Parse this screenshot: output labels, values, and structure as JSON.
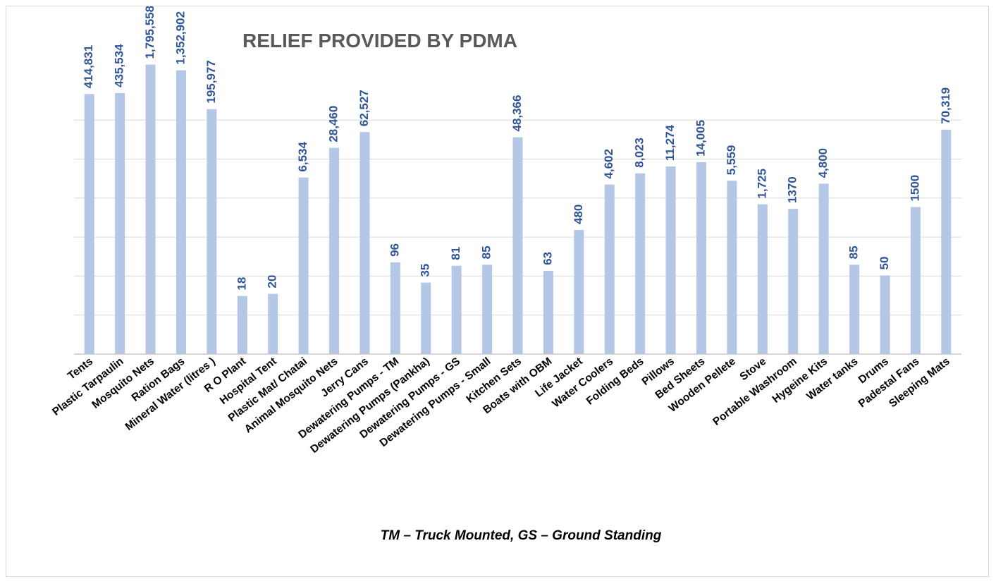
{
  "chart_data": {
    "type": "bar",
    "title": "RELIEF PROVIDED BY PDMA",
    "footnote": "TM – Truck Mounted, GS – Ground Standing",
    "scale": "log",
    "value_axis_labels": false,
    "grid": "horizontal",
    "legend": "none",
    "bar_color": "#b4c7e7",
    "label_color": "#2f5597",
    "categories": [
      "Tents",
      "Plastic Tarpaulin",
      "Mosquito Nets",
      "Ration Bags",
      "Mineral Water (litres )",
      "R O Plant",
      "Hospital Tent",
      "Plastic Mat/ Chatai",
      "Animal Mosquito Nets",
      "Jerry Cans",
      "Dewatering Pumps - TM",
      "Dewatering Pumps (Pankha)",
      "Dewatering Pumps - GS",
      "Dewatering Pumps - Small",
      "Kitchen Sets",
      "Boats with OBM",
      "Life Jacket",
      "Water Coolers",
      "Folding Beds",
      "Pillows",
      "Bed Sheets",
      "Wooden Pellete",
      "Stove",
      "Portable Washroom",
      "Hygeine Kits",
      "Water tanks",
      "Drums",
      "Padestal Fans",
      "Sleeping Mats"
    ],
    "values": [
      414831,
      435534,
      1795558,
      1352902,
      195977,
      18,
      20,
      6534,
      28460,
      62527,
      96,
      35,
      81,
      85,
      48366,
      63,
      480,
      4602,
      8023,
      11274,
      14005,
      5559,
      1725,
      1370,
      4800,
      85,
      50,
      1500,
      70319
    ],
    "data_labels": [
      "414,831",
      "435,534",
      "1,795,558",
      "1,352,902",
      "195,977",
      "18",
      "20",
      "6,534",
      "28,460",
      "62,527",
      "96",
      "35",
      "81",
      "85",
      "48,366",
      "63",
      "480",
      "4,602",
      "8,023",
      "11,274",
      "14,005",
      "5,559",
      "1,725",
      "1370",
      "4,800",
      "85",
      "50",
      "1500",
      "70,319"
    ]
  }
}
